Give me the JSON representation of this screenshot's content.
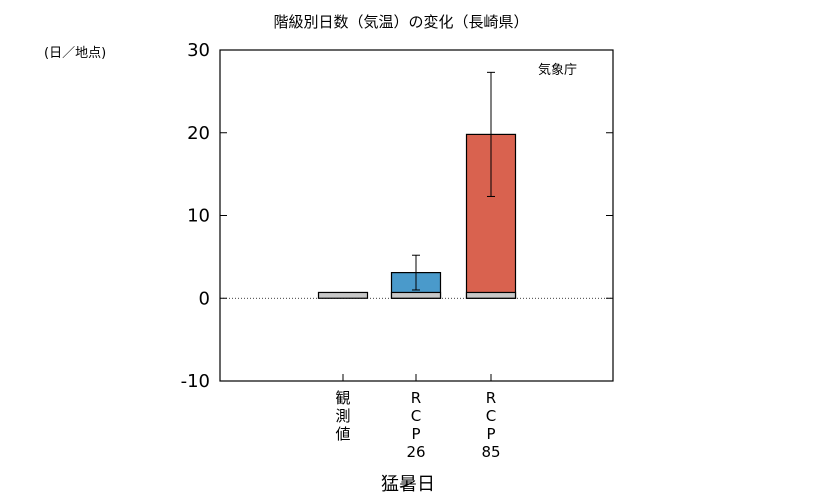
{
  "chart_data": {
    "type": "bar",
    "title": "階級別日数（気温）の変化（長崎県）",
    "unit_label": "(日／地点)",
    "source": "気象庁",
    "xlabel": "猛暑日",
    "ylabel": "",
    "ylim": [
      -10,
      30
    ],
    "yticks": [
      -10,
      0,
      10,
      20,
      30
    ],
    "ytick_labels": [
      "-10",
      "0",
      "10",
      "20",
      "30"
    ],
    "grid": false,
    "zero_line": "dotted",
    "categories": [
      {
        "lines": [
          "観",
          "測",
          "値"
        ]
      },
      {
        "lines": [
          "R",
          "C",
          "P",
          "26"
        ]
      },
      {
        "lines": [
          "R",
          "C",
          "P",
          "85"
        ]
      }
    ],
    "bars": [
      {
        "base": 0.7,
        "value": null,
        "err_low": null,
        "err_high": null,
        "color": null
      },
      {
        "base": 0.7,
        "value": 3.1,
        "err_low": 1.0,
        "err_high": 5.2,
        "color": "#4a9acb"
      },
      {
        "base": 0.7,
        "value": 19.8,
        "err_low": 12.3,
        "err_high": 27.3,
        "color": "#d9624f"
      }
    ],
    "base_color": "#c8c8c8"
  }
}
